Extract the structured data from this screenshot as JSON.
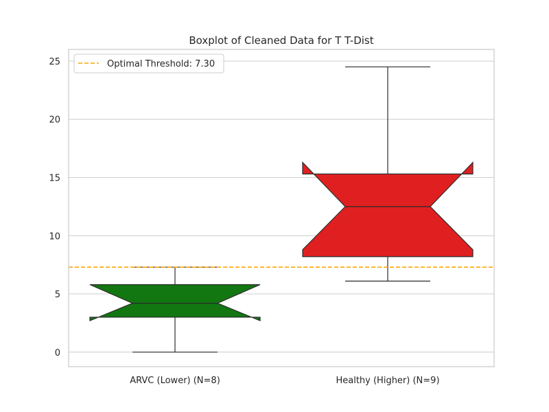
{
  "chart_data": {
    "type": "boxplot",
    "title": "Boxplot of Cleaned Data for T T-Dist",
    "xlabel": "",
    "ylabel": "",
    "categories": [
      "ARVC (Lower) (N=8)",
      "Healthy (Higher) (N=9)"
    ],
    "boxes": [
      {
        "category": "ARVC (Lower) (N=8)",
        "color": "#127711",
        "whisker_low": 0.0,
        "q1": 3.0,
        "median": 4.2,
        "q3": 5.8,
        "whisker_high": 7.3,
        "notch_low": 2.7,
        "notch_high": 5.8
      },
      {
        "category": "Healthy (Higher) (N=9)",
        "color": "#e02020",
        "whisker_low": 6.1,
        "q1": 8.2,
        "median": 12.5,
        "q3": 15.3,
        "whisker_high": 24.5,
        "notch_low": 8.8,
        "notch_high": 16.3
      }
    ],
    "threshold": {
      "value": 7.3,
      "label": "Optimal Threshold: 7.30",
      "color": "#ffa500"
    },
    "ylim": [
      -1.25,
      26
    ],
    "yticks": [
      0,
      5,
      10,
      15,
      20,
      25
    ],
    "grid": true,
    "legend_position": "top-left"
  }
}
